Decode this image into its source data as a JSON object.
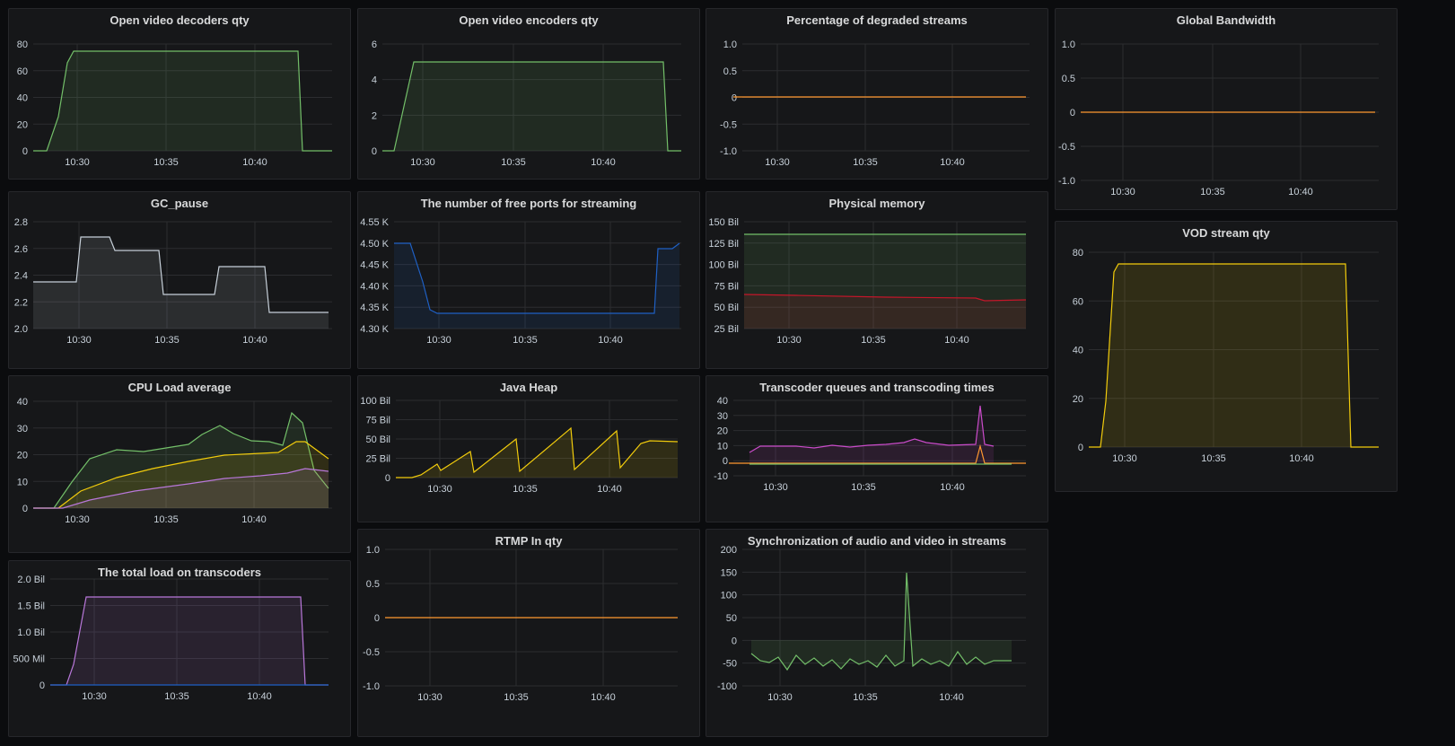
{
  "colors": {
    "green": "#73bf69",
    "orange": "#ff9830",
    "blue": "#1f60c4",
    "yellow": "#f2cc0c",
    "purple": "#b877d9",
    "red": "#c4162a",
    "magenta": "#c94bc9",
    "olive": "#8ab8ff",
    "gray": "#c7d0d9"
  },
  "panels": [
    {
      "id": "decoders",
      "title": "Open video decoders qty",
      "yticks": [
        "80",
        "60",
        "40",
        "20",
        "0"
      ],
      "xticks": [
        "10:30",
        "10:35",
        "10:40"
      ]
    },
    {
      "id": "encoders",
      "title": "Open video encoders qty",
      "yticks": [
        "6",
        "4",
        "2",
        "0"
      ],
      "xticks": [
        "10:30",
        "10:35",
        "10:40"
      ]
    },
    {
      "id": "degraded",
      "title": "Percentage of degraded streams",
      "yticks": [
        "1.0",
        "0.5",
        "0",
        "-0.5",
        "-1.0"
      ],
      "xticks": [
        "10:30",
        "10:35",
        "10:40"
      ]
    },
    {
      "id": "bandwidth",
      "title": "Global Bandwidth",
      "yticks": [
        "1.0",
        "0.5",
        "0",
        "-0.5",
        "-1.0"
      ],
      "xticks": [
        "10:30",
        "10:35",
        "10:40"
      ]
    },
    {
      "id": "gc",
      "title": "GC_pause",
      "yticks": [
        "2.8",
        "2.6",
        "2.4",
        "2.2",
        "2.0"
      ],
      "xticks": [
        "10:30",
        "10:35",
        "10:40"
      ]
    },
    {
      "id": "ports",
      "title": "The number of free ports for streaming",
      "yticks": [
        "4.55 K",
        "4.50 K",
        "4.45 K",
        "4.40 K",
        "4.35 K",
        "4.30 K"
      ],
      "xticks": [
        "10:30",
        "10:35",
        "10:40"
      ]
    },
    {
      "id": "memory",
      "title": "Physical memory",
      "yticks": [
        "150 Bil",
        "125 Bil",
        "100 Bil",
        "75 Bil",
        "50 Bil",
        "25 Bil"
      ],
      "xticks": [
        "10:30",
        "10:35",
        "10:40"
      ]
    },
    {
      "id": "vod",
      "title": "VOD stream qty",
      "yticks": [
        "80",
        "60",
        "40",
        "20",
        "0"
      ],
      "xticks": [
        "10:30",
        "10:35",
        "10:40"
      ]
    },
    {
      "id": "cpu",
      "title": "CPU Load average",
      "yticks": [
        "40",
        "30",
        "20",
        "10",
        "0"
      ],
      "xticks": [
        "10:30",
        "10:35",
        "10:40"
      ]
    },
    {
      "id": "heap",
      "title": "Java Heap",
      "yticks": [
        "100 Bil",
        "75 Bil",
        "50 Bil",
        "25 Bil",
        "0"
      ],
      "xticks": [
        "10:30",
        "10:35",
        "10:40"
      ]
    },
    {
      "id": "queues",
      "title": "Transcoder queues and transcoding times",
      "yticks": [
        "40",
        "30",
        "20",
        "10",
        "0",
        "-10"
      ],
      "xticks": [
        "10:30",
        "10:35",
        "10:40"
      ]
    },
    {
      "id": "total",
      "title": "The total load on transcoders",
      "yticks": [
        "2.0 Bil",
        "1.5 Bil",
        "1.0 Bil",
        "500 Mil",
        "0"
      ],
      "xticks": [
        "10:30",
        "10:35",
        "10:40"
      ]
    },
    {
      "id": "rtmp",
      "title": "RTMP In qty",
      "yticks": [
        "1.0",
        "0.5",
        "0",
        "-0.5",
        "-1.0"
      ],
      "xticks": [
        "10:30",
        "10:35",
        "10:40"
      ]
    },
    {
      "id": "sync",
      "title": "Synchronization of audio and video in streams",
      "yticks": [
        "200",
        "150",
        "100",
        "50",
        "0",
        "-50",
        "-100"
      ],
      "xticks": [
        "10:30",
        "10:35",
        "10:40"
      ]
    }
  ]
}
